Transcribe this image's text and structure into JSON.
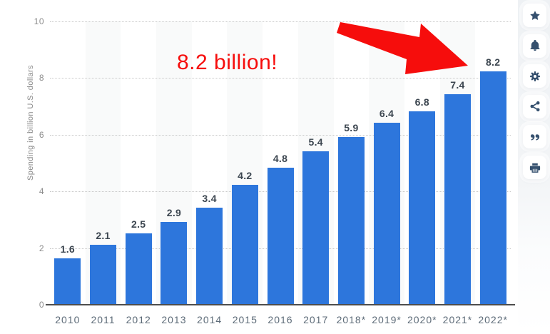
{
  "chart_data": {
    "type": "bar",
    "categories": [
      "2010",
      "2011",
      "2012",
      "2013",
      "2014",
      "2015",
      "2016",
      "2017",
      "2018*",
      "2019*",
      "2020*",
      "2021*",
      "2022*"
    ],
    "values": [
      1.6,
      2.1,
      2.5,
      2.9,
      3.4,
      4.2,
      4.8,
      5.4,
      5.9,
      6.4,
      6.8,
      7.4,
      8.2
    ],
    "value_labels": [
      "1.6",
      "2.1",
      "2.5",
      "2.9",
      "3.4",
      "4.2",
      "4.8",
      "5.4",
      "5.9",
      "6.4",
      "6.8",
      "7.4",
      "8.2"
    ],
    "title": "",
    "xlabel": "",
    "ylabel": "Spending in billion U.S. dollars",
    "ylim": [
      0,
      10
    ],
    "yticks": [
      0,
      2,
      4,
      6,
      8,
      10
    ],
    "ytick_labels": [
      "0",
      "2",
      "4",
      "6",
      "8",
      "10"
    ],
    "grid": "horizontal dotted",
    "legend": "none",
    "colors": {
      "bar": "#2d76dc",
      "value_label": "#3c4650",
      "x_tick_label": "#5d6b78",
      "y_tick_label": "#8c8c8c",
      "axis_line": "#4d4d4d",
      "gridline": "#c9c9c9"
    }
  },
  "annotation": {
    "text": "8.2 billion!",
    "color": "#f60d0c",
    "target_category": "2022*"
  },
  "sidebar": {
    "icon_color": "#35506e",
    "buttons": [
      {
        "icon": "star-icon",
        "name": "favorite-button"
      },
      {
        "icon": "bell-icon",
        "name": "alerts-button"
      },
      {
        "icon": "gear-icon",
        "name": "settings-button"
      },
      {
        "icon": "share-icon",
        "name": "share-button"
      },
      {
        "icon": "quote-icon",
        "name": "cite-button"
      },
      {
        "icon": "printer-icon",
        "name": "print-button"
      }
    ]
  }
}
